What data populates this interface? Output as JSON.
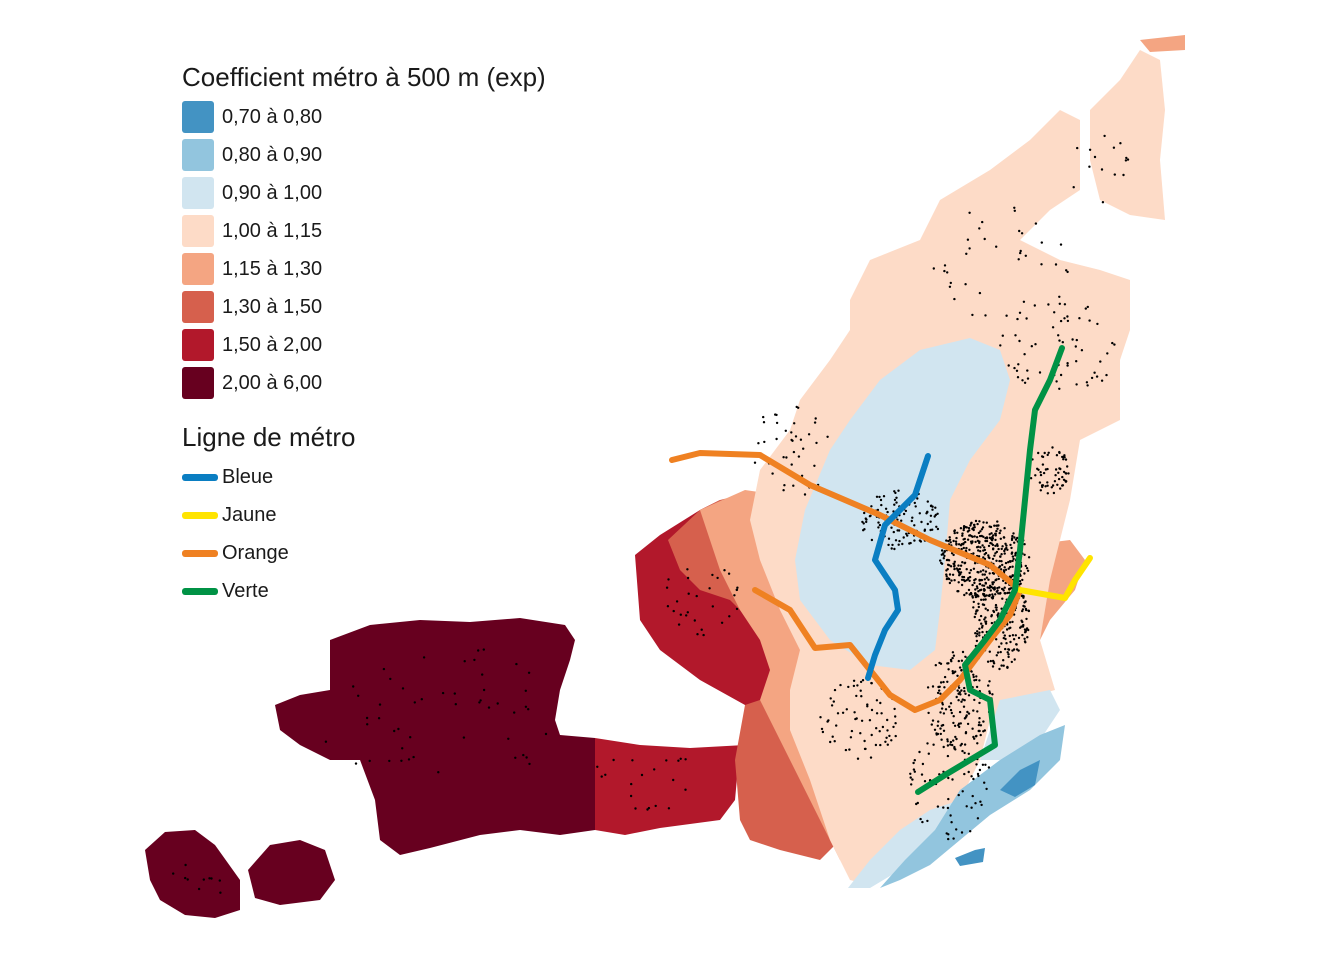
{
  "legend_fill": {
    "title": "Coefficient métro à 500 m (exp)",
    "classes": [
      {
        "label": "0,70 à 0,80",
        "color": "#4393c3"
      },
      {
        "label": "0,80 à 0,90",
        "color": "#92c5de"
      },
      {
        "label": "0,90 à 1,00",
        "color": "#d1e5f0"
      },
      {
        "label": "1,00 à 1,15",
        "color": "#fddbc7"
      },
      {
        "label": "1,15 à 1,30",
        "color": "#f4a582"
      },
      {
        "label": "1,30 à 1,50",
        "color": "#d6604d"
      },
      {
        "label": "1,50 à 2,00",
        "color": "#b2182b"
      },
      {
        "label": "2,00 à 6,00",
        "color": "#67001f"
      }
    ]
  },
  "legend_lines": {
    "title": "Ligne de métro",
    "lines": [
      {
        "label": "Bleue",
        "color": "#0a7ec2"
      },
      {
        "label": "Jaune",
        "color": "#ffe400"
      },
      {
        "label": "Orange",
        "color": "#ef8122"
      },
      {
        "label": "Verte",
        "color": "#009245"
      }
    ]
  }
}
